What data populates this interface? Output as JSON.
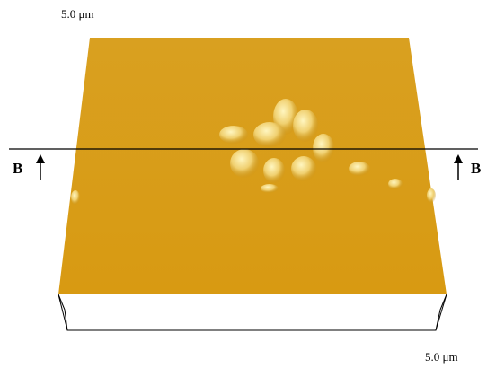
{
  "labels": {
    "top_scale": "5.0 μm",
    "bottom_scale": "5.0 μm",
    "section_left": "B",
    "section_right": "B"
  }
}
